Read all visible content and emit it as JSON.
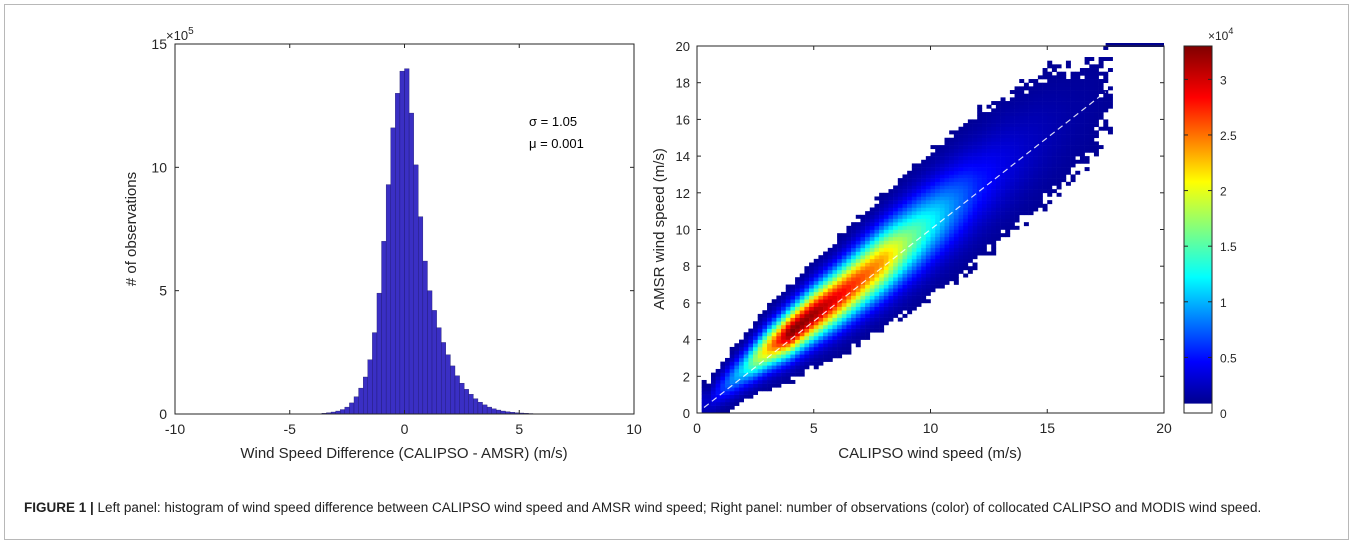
{
  "caption": {
    "label": "FIGURE 1 |",
    "text": " Left panel: histogram of wind speed difference between CALIPSO wind speed and AMSR wind speed; Right panel: number of observations (color) of collocated CALIPSO and MODIS wind speed."
  },
  "chart_data": [
    {
      "type": "bar",
      "title": "",
      "xlabel": "Wind Speed Difference (CALIPSO - AMSR) (m/s)",
      "ylabel": "# of observations",
      "xlim": [
        -10,
        10
      ],
      "ylim": [
        0,
        15
      ],
      "y_multiplier": "×10",
      "y_multiplier_exp": "5",
      "xticks": [
        "-10",
        "-5",
        "0",
        "5",
        "10"
      ],
      "yticks": [
        "0",
        "5",
        "10",
        "15"
      ],
      "bar_color": "#3a2fc4",
      "annotations": [
        "σ = 1.05",
        "μ = 0.001"
      ],
      "bin_width": 0.2,
      "x": [
        -3.5,
        -3.3,
        -3.1,
        -2.9,
        -2.7,
        -2.5,
        -2.3,
        -2.1,
        -1.9,
        -1.7,
        -1.5,
        -1.3,
        -1.1,
        -0.9,
        -0.7,
        -0.5,
        -0.3,
        -0.1,
        0.1,
        0.3,
        0.5,
        0.7,
        0.9,
        1.1,
        1.3,
        1.5,
        1.7,
        1.9,
        2.1,
        2.3,
        2.5,
        2.7,
        2.9,
        3.1,
        3.3,
        3.5,
        3.7,
        3.9,
        4.1,
        4.3,
        4.5,
        4.7,
        4.9,
        5.1,
        5.3,
        5.5
      ],
      "values": [
        0.03,
        0.05,
        0.08,
        0.12,
        0.18,
        0.28,
        0.45,
        0.7,
        1.05,
        1.5,
        2.2,
        3.3,
        4.9,
        7.0,
        9.3,
        11.6,
        13.0,
        13.9,
        14.0,
        12.2,
        10.1,
        8.0,
        6.2,
        5.0,
        4.2,
        3.5,
        2.9,
        2.4,
        1.95,
        1.55,
        1.25,
        1.0,
        0.8,
        0.62,
        0.48,
        0.37,
        0.28,
        0.21,
        0.16,
        0.12,
        0.09,
        0.07,
        0.05,
        0.04,
        0.03,
        0.02
      ]
    },
    {
      "type": "heatmap",
      "title": "",
      "xlabel": "CALIPSO wind speed (m/s)",
      "ylabel": "AMSR wind speed (m/s)",
      "xlim": [
        0,
        20
      ],
      "ylim": [
        0,
        20
      ],
      "xticks": [
        "0",
        "5",
        "10",
        "15",
        "20"
      ],
      "yticks": [
        "0",
        "2",
        "4",
        "6",
        "8",
        "10",
        "12",
        "14",
        "16",
        "18",
        "20"
      ],
      "colorbar": {
        "range": [
          0,
          3.3
        ],
        "multiplier": "×10",
        "multiplier_exp": "4",
        "ticks": [
          0,
          0.5,
          1,
          1.5,
          2,
          2.5,
          3
        ],
        "tick_labels": [
          "0",
          "0.5",
          "1",
          "1.5",
          "2",
          "2.5",
          "3"
        ],
        "colormap": "jet"
      },
      "ridge": {
        "x": [
          0.5,
          1,
          2,
          3,
          4,
          5,
          6,
          7,
          8,
          9,
          10,
          11,
          12,
          13,
          14,
          15,
          16,
          17,
          17.5
        ],
        "y_center": [
          0.6,
          1.3,
          2.4,
          3.5,
          4.4,
          5.4,
          6.3,
          7.3,
          8.3,
          9.3,
          10.3,
          11.3,
          12.3,
          13.3,
          14.2,
          15.1,
          15.9,
          16.8,
          17.2
        ],
        "peak_count": [
          0.15,
          0.4,
          1.0,
          2.2,
          3.3,
          3.2,
          2.9,
          2.6,
          2.3,
          1.6,
          1.1,
          0.7,
          0.4,
          0.25,
          0.15,
          0.09,
          0.05,
          0.03,
          0.02
        ]
      },
      "saturated_band": {
        "x": [
          17.5,
          20
        ],
        "y": 20
      },
      "reference_line": "1:1 dashed"
    }
  ]
}
